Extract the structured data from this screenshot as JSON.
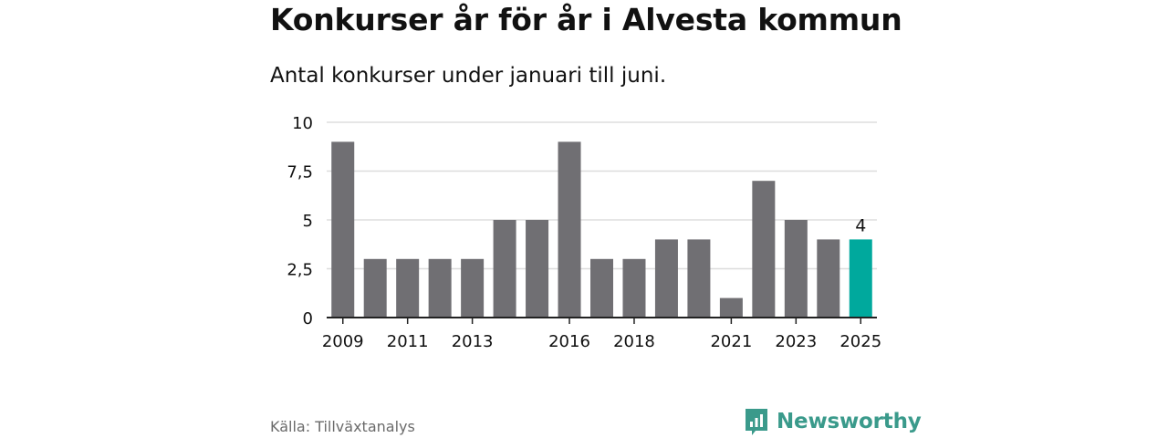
{
  "header": {
    "title": "Konkurser år för år i Alvesta kommun",
    "subtitle": "Antal konkurser under januari till juni."
  },
  "footer": {
    "source": "Källa: Tillväxtanalys",
    "brand_name": "Newsworthy",
    "brand_icon": "bar-chart-speech-bubble-icon"
  },
  "colors": {
    "bar": "#706f73",
    "highlight": "#00a99d",
    "grid": "#dddddd",
    "axis": "#222222",
    "brand": "#3a9a8b"
  },
  "chart_data": {
    "type": "bar",
    "categories": [
      "2009",
      "2010",
      "2011",
      "2012",
      "2013",
      "2014",
      "2015",
      "2016",
      "2017",
      "2018",
      "2019",
      "2020",
      "2021",
      "2022",
      "2023",
      "2024",
      "2025"
    ],
    "values": [
      9,
      3,
      3,
      3,
      3,
      5,
      5,
      9,
      3,
      3,
      4,
      4,
      1,
      7,
      5,
      4,
      4
    ],
    "x_tick_labels": [
      "2009",
      "2011",
      "2013",
      "2016",
      "2018",
      "2021",
      "2023",
      "2025"
    ],
    "y_ticks": [
      0,
      2.5,
      5,
      7.5,
      10
    ],
    "y_tick_labels": [
      "0",
      "2,5",
      "5",
      "7,5",
      "10"
    ],
    "ylim": [
      0,
      10
    ],
    "highlight_category": "2025",
    "data_labels": [
      {
        "category": "2025",
        "text": "4"
      }
    ],
    "grid": true,
    "legend": "none",
    "xlabel": "",
    "ylabel": ""
  }
}
